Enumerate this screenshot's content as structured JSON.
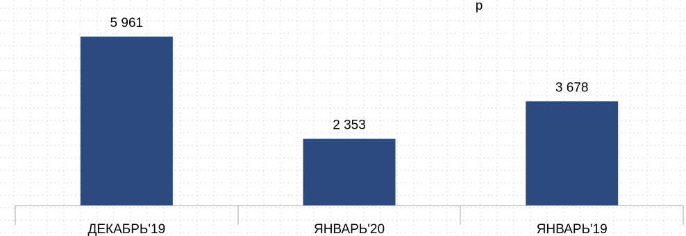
{
  "chart_data": {
    "type": "bar",
    "title_fragment": "р",
    "categories": [
      "ДЕКАБРЬ'19",
      "ЯНВАРЬ'20",
      "ЯНВАРЬ'19"
    ],
    "values": [
      5961,
      2353,
      3678
    ],
    "value_labels": [
      "5 961",
      "2 353",
      "3 678"
    ],
    "ylim": [
      0,
      7250
    ],
    "grid": "dotted",
    "legend": "none",
    "colors": {
      "bar": "#2a4a80",
      "axis": "#a6a6a6",
      "grid": "#dcdcdc"
    }
  }
}
